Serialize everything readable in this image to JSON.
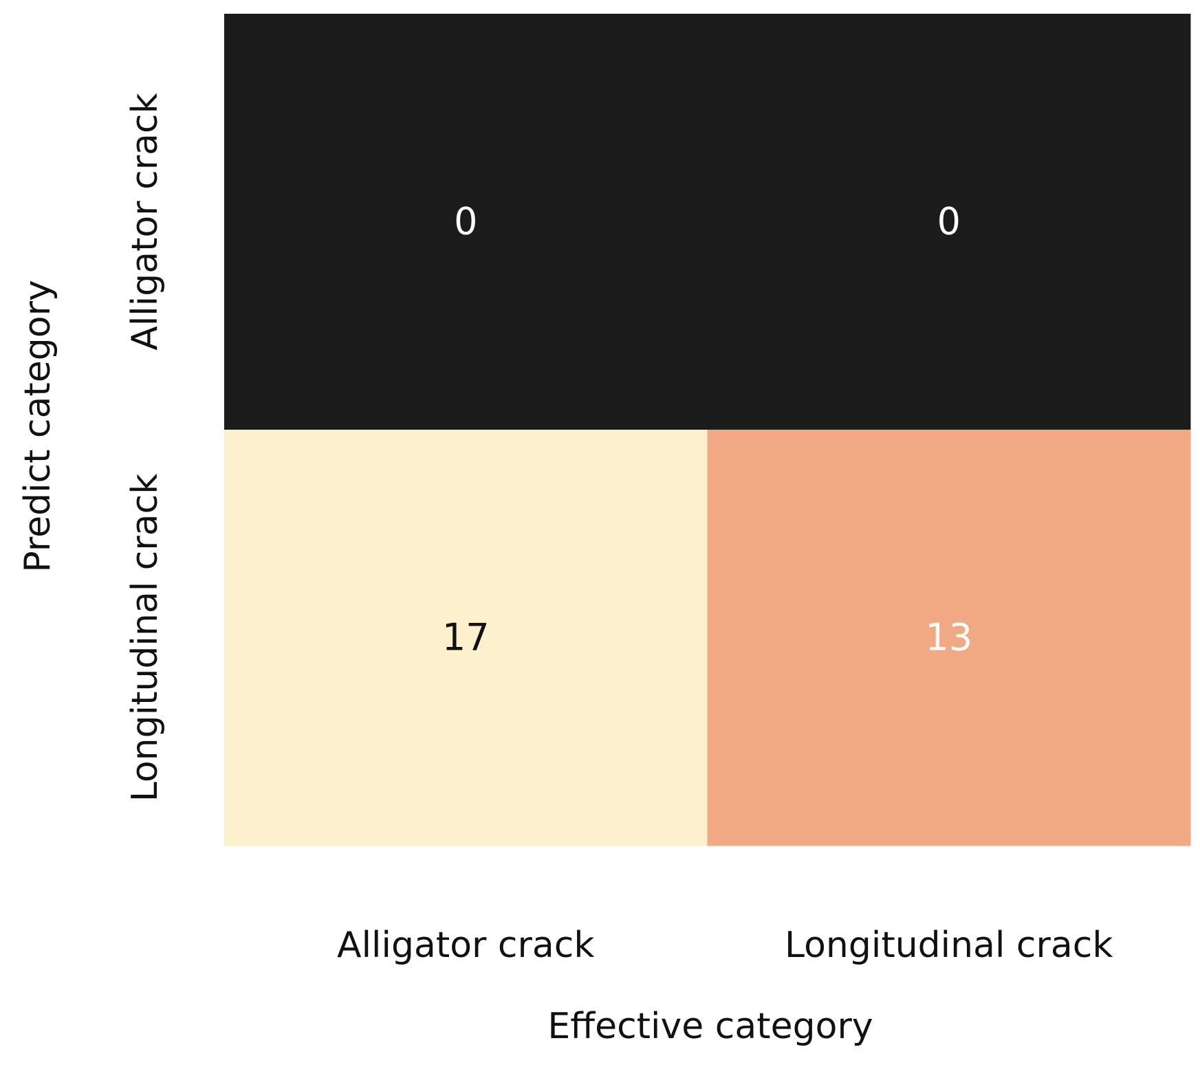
{
  "chart_data": {
    "type": "heatmap",
    "title": "",
    "xlabel": "Effective category",
    "ylabel": "Predict category",
    "x_categories": [
      "Alligator crack",
      "Longitudinal crack"
    ],
    "y_categories": [
      "Alligator crack",
      "Longitudinal crack"
    ],
    "matrix": [
      [
        0,
        0
      ],
      [
        17,
        13
      ]
    ],
    "colorbar": false,
    "colors": {
      "low": "#1c1c1c",
      "mid": "#f0a882",
      "high": "#fdf0cd",
      "light_text": "#ffffff",
      "dark_text": "#111111"
    }
  }
}
